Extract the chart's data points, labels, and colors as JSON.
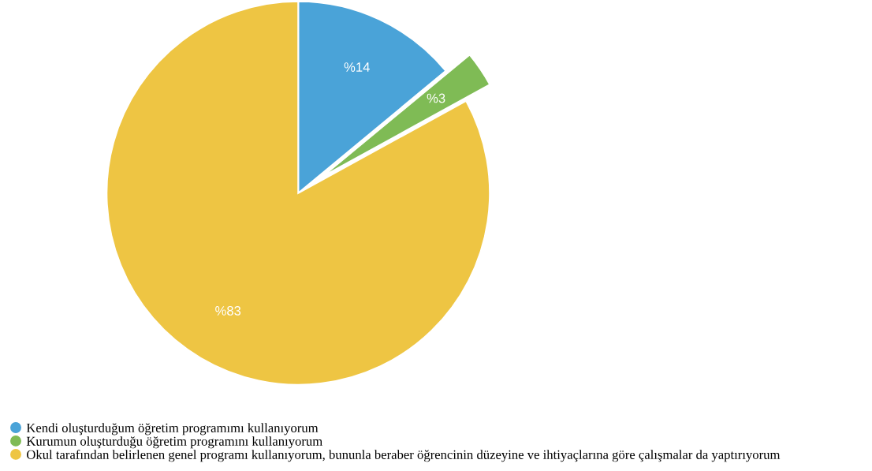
{
  "chart_data": {
    "type": "pie",
    "categories": [
      "Kendi oluşturduğum öğretim programımı kullanıyorum",
      "Kurumun oluşturduğu öğretim programını kullanıyorum",
      "Okul tarafından belirlenen genel programı kullanıyorum, bununla beraber öğrencinin düzeyine ve ihtiyaçlarına göre çalışmalar da yaptırıyorum"
    ],
    "values": [
      14,
      3,
      83
    ],
    "colors": [
      "#4aa3d8",
      "#7fbb55",
      "#eec543"
    ],
    "value_labels": [
      "%14",
      "%3",
      "%83"
    ],
    "legend": "bottom"
  }
}
